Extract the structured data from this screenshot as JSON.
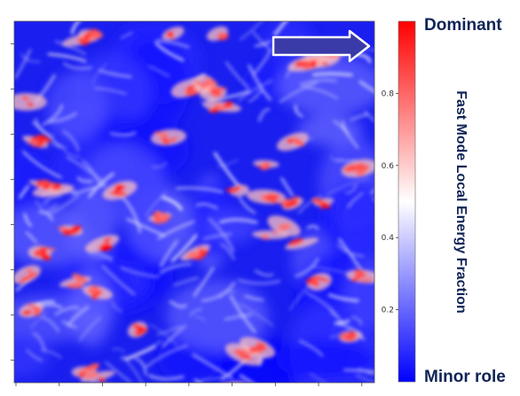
{
  "chart_data": {
    "type": "heatmap",
    "title": "",
    "xlabel": "",
    "ylabel": "",
    "colorbar": {
      "label": "Fast Mode Local Energy Fraction",
      "range": [
        0,
        1
      ],
      "colormap": [
        "#0000ff",
        "#ffffff",
        "#ff0000"
      ],
      "ticks": [
        {
          "value": 0.2,
          "label": "0.2"
        },
        {
          "value": 0.4,
          "label": "0.4"
        },
        {
          "value": 0.6,
          "label": "0.6"
        },
        {
          "value": 0.8,
          "label": "0.8"
        }
      ],
      "top_annotation": "Dominant",
      "bottom_annotation": "Minor role"
    },
    "annotations": [
      {
        "type": "arrow",
        "direction": "right",
        "fill": "#3a3aa8",
        "outline": "#ffffff"
      }
    ],
    "x_tick_count": 9,
    "y_tick_count": 8,
    "field_note_values": "qualitative field: mostly low fraction (0.0–0.3) with scattered high-fraction patches (0.7–1.0)"
  }
}
